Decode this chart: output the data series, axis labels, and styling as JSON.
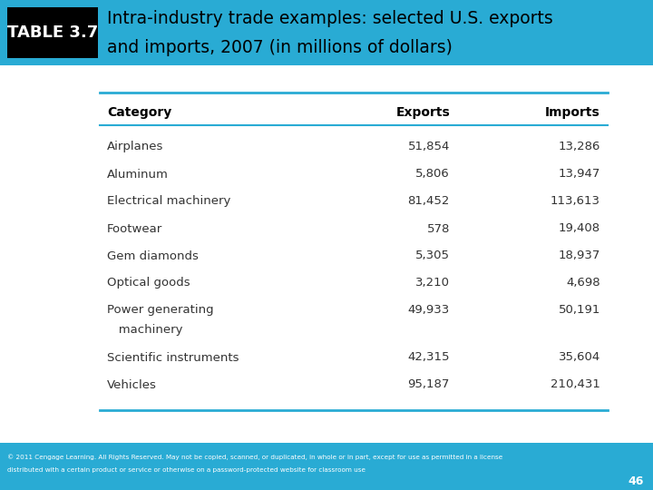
{
  "title_label": "TABLE 3.7",
  "title_text1": "Intra-industry trade examples: selected U.S. exports",
  "title_text2": "and imports, 2007 (in millions of dollars)",
  "header": [
    "Category",
    "Exports",
    "Imports"
  ],
  "rows": [
    [
      "Airplanes",
      "51,854",
      "13,286"
    ],
    [
      "Aluminum",
      "5,806",
      "13,947"
    ],
    [
      "Electrical machinery",
      "81,452",
      "113,613"
    ],
    [
      "Footwear",
      "578",
      "19,408"
    ],
    [
      "Gem diamonds",
      "5,305",
      "18,937"
    ],
    [
      "Optical goods",
      "3,210",
      "4,698"
    ],
    [
      "Power generating",
      "49,933",
      "50,191"
    ],
    [
      "   machinery",
      "",
      ""
    ],
    [
      "Scientific instruments",
      "42,315",
      "35,604"
    ],
    [
      "Vehicles",
      "95,187",
      "210,431"
    ]
  ],
  "table_label_bg": "#29ABD4",
  "table_label_text_color": "#FFFFFF",
  "title_text_color": "#000000",
  "header_text_color": "#000000",
  "row_text_color": "#333333",
  "line_color": "#29ABD4",
  "header_bg": "#29ABD4",
  "footer_text_line1": "© 2011 Cengage Learning. All Rights Reserved. May not be copied, scanned, or duplicated, in whole or in part, except for use as permitted in a license",
  "footer_text_line2": "distributed with a certain product or service or otherwise on a password-protected website for classroom use",
  "footer_bg": "#29ABD4",
  "page_number": "46",
  "bg_color": "#FFFFFF"
}
